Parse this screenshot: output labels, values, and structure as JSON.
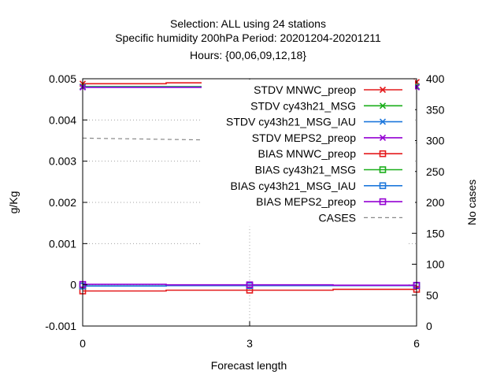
{
  "chart_data": {
    "type": "line",
    "title_lines": [
      "Selection: ALL using    24 stations",
      "Specific humidity 200hPa   Period: 20201204-20201211",
      "Hours: {00,06,09,12,18}"
    ],
    "xlabel": "Forecast length",
    "ylabel": "g/Kg",
    "y2label": "No cases",
    "x_ticks": [
      0,
      3,
      6
    ],
    "xlim": [
      0,
      6
    ],
    "ylim": [
      -0.001,
      0.005
    ],
    "y_ticks": [
      -0.001,
      0,
      0.001,
      0.002,
      0.003,
      0.004,
      0.005
    ],
    "y_tick_labels": [
      "-0.001",
      "0",
      "0.001",
      "0.002",
      "0.003",
      "0.004",
      "0.005"
    ],
    "y2lim": [
      0,
      400
    ],
    "y2_ticks": [
      0,
      50,
      100,
      150,
      200,
      250,
      300,
      350,
      400
    ],
    "grid": true,
    "legend_position": "top-right",
    "series": [
      {
        "name": "STDV MNWC_preop",
        "color": "#e41a1c",
        "marker": "x",
        "axis": "y",
        "dash": false,
        "x": [
          0,
          3,
          6
        ],
        "y": [
          0.00488,
          0.0049,
          0.00492
        ]
      },
      {
        "name": "STDV cy43h21_MSG",
        "color": "#1aae1a",
        "marker": "x",
        "axis": "y",
        "dash": false,
        "x": [
          0,
          3,
          6
        ],
        "y": [
          0.00481,
          0.00481,
          0.00482
        ]
      },
      {
        "name": "STDV cy43h21_MSG_IAU",
        "color": "#1e78dc",
        "marker": "x",
        "axis": "y",
        "dash": false,
        "x": [
          0,
          3,
          6
        ],
        "y": [
          0.0048,
          0.0048,
          0.0048
        ]
      },
      {
        "name": "STDV MEPS2_preop",
        "color": "#9400d3",
        "marker": "x",
        "axis": "y",
        "dash": false,
        "x": [
          0,
          3,
          6
        ],
        "y": [
          0.00479,
          0.00479,
          0.00479
        ]
      },
      {
        "name": "BIAS MNWC_preop",
        "color": "#e41a1c",
        "marker": "square",
        "axis": "y",
        "dash": false,
        "x": [
          0,
          3,
          6
        ],
        "y": [
          -0.00015,
          -0.00013,
          -0.00011
        ]
      },
      {
        "name": "BIAS cy43h21_MSG",
        "color": "#1aae1a",
        "marker": "square",
        "axis": "y",
        "dash": false,
        "x": [
          0,
          3,
          6
        ],
        "y": [
          -3e-05,
          -2e-05,
          -2e-05
        ]
      },
      {
        "name": "BIAS cy43h21_MSG_IAU",
        "color": "#1e78dc",
        "marker": "square",
        "axis": "y",
        "dash": false,
        "x": [
          0,
          3,
          6
        ],
        "y": [
          -3e-05,
          -2e-05,
          -2e-05
        ]
      },
      {
        "name": "BIAS MEPS2_preop",
        "color": "#9400d3",
        "marker": "square",
        "axis": "y",
        "dash": false,
        "x": [
          0,
          3,
          6
        ],
        "y": [
          1e-05,
          0.0,
          -1e-05
        ]
      },
      {
        "name": "CASES",
        "color": "#888888",
        "marker": "none",
        "axis": "y2",
        "dash": true,
        "x": [
          0,
          3,
          6
        ],
        "y": [
          304,
          300,
          296
        ]
      }
    ]
  }
}
